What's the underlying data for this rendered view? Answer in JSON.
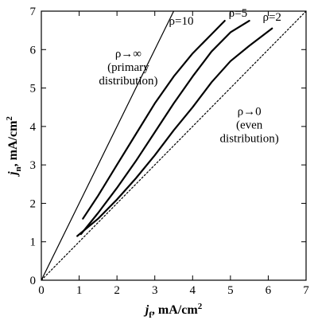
{
  "chart_data": {
    "type": "line",
    "xlabel": {
      "var": "j",
      "sub": "f",
      "unit": ", mA/cm",
      "sup": "2"
    },
    "ylabel": {
      "var": "j",
      "sub": "n",
      "unit": ", mA/cm",
      "sup": "2"
    },
    "xlim": [
      0,
      7
    ],
    "ylim": [
      0,
      7
    ],
    "x_ticks": [
      "0",
      "1",
      "2",
      "3",
      "4",
      "5",
      "6",
      "7"
    ],
    "y_ticks": [
      "0",
      "1",
      "2",
      "3",
      "4",
      "5",
      "6",
      "7"
    ],
    "grid": false,
    "series": [
      {
        "name": "ρ→∞ (primary distribution)",
        "style": "thin",
        "x": [
          0,
          3.5
        ],
        "y": [
          0,
          7
        ]
      },
      {
        "name": "ρ=10",
        "style": "thick",
        "x": [
          1.1,
          1.5,
          2.0,
          2.5,
          3.0,
          3.5,
          4.0,
          4.5,
          4.85
        ],
        "y": [
          1.6,
          2.2,
          3.0,
          3.8,
          4.6,
          5.3,
          5.9,
          6.4,
          6.75
        ]
      },
      {
        "name": "ρ=5",
        "style": "thick",
        "x": [
          1.05,
          1.5,
          2.0,
          2.5,
          3.0,
          3.5,
          4.0,
          4.5,
          5.0,
          5.5
        ],
        "y": [
          1.2,
          1.75,
          2.4,
          3.1,
          3.85,
          4.6,
          5.3,
          5.95,
          6.45,
          6.75
        ]
      },
      {
        "name": "ρ=2",
        "style": "thick",
        "x": [
          0.95,
          1.5,
          2.0,
          2.5,
          3.0,
          3.5,
          4.0,
          4.5,
          5.0,
          5.5,
          6.1
        ],
        "y": [
          1.15,
          1.6,
          2.1,
          2.65,
          3.25,
          3.9,
          4.5,
          5.15,
          5.7,
          6.1,
          6.55
        ]
      },
      {
        "name": "ρ→0 (even distribution)",
        "style": "dotted",
        "x": [
          0,
          7
        ],
        "y": [
          0,
          7
        ]
      }
    ],
    "annotations": [
      {
        "id": "rho-inf",
        "lines": [
          "ρ→∞",
          "(primary",
          "distribution)"
        ],
        "x": 2.3,
        "y": 5.8
      },
      {
        "id": "rho-10",
        "lines": [
          "ρ=10"
        ],
        "x": 3.7,
        "y": 6.65
      },
      {
        "id": "rho-5",
        "lines": [
          "ρ=5"
        ],
        "x": 5.2,
        "y": 6.85
      },
      {
        "id": "rho-2",
        "lines": [
          "ρ=2"
        ],
        "x": 6.1,
        "y": 6.75
      },
      {
        "id": "rho-0",
        "lines": [
          "ρ→0",
          "(even",
          "distribution)"
        ],
        "x": 5.5,
        "y": 4.3
      }
    ]
  }
}
